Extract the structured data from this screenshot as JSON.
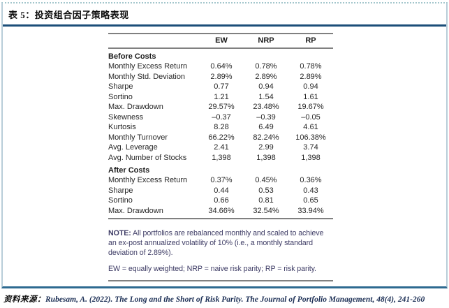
{
  "page": {
    "title": "表 5：投资组合因子策略表现",
    "source_label": "资料来源：",
    "source_text": "Rubesam, A. (2022). The Long and the Short of Risk Parity. The Journal of Portfolio Management, 48(4), 241-260"
  },
  "table": {
    "columns": [
      "EW",
      "NRP",
      "RP"
    ],
    "sections": [
      {
        "header": "Before Costs",
        "rows": [
          {
            "label": "Monthly Excess Return",
            "values": [
              "0.64%",
              "0.78%",
              "0.78%"
            ]
          },
          {
            "label": "Monthly Std. Deviation",
            "values": [
              "2.89%",
              "2.89%",
              "2.89%"
            ]
          },
          {
            "label": "Sharpe",
            "values": [
              "0.77",
              "0.94",
              "0.94"
            ]
          },
          {
            "label": "Sortino",
            "values": [
              "1.21",
              "1.54",
              "1.61"
            ]
          },
          {
            "label": "Max. Drawdown",
            "values": [
              "29.57%",
              "23.48%",
              "19.67%"
            ]
          },
          {
            "label": "Skewness",
            "values": [
              "–0.37",
              "–0.39",
              "–0.05"
            ]
          },
          {
            "label": "Kurtosis",
            "values": [
              "8.28",
              "6.49",
              "4.61"
            ]
          },
          {
            "label": "Monthly Turnover",
            "values": [
              "66.22%",
              "82.24%",
              "106.38%"
            ]
          },
          {
            "label": "Avg. Leverage",
            "values": [
              "2.41",
              "2.99",
              "3.74"
            ]
          },
          {
            "label": "Avg. Number of Stocks",
            "values": [
              "1,398",
              "1,398",
              "1,398"
            ]
          }
        ]
      },
      {
        "header": "After Costs",
        "rows": [
          {
            "label": "Monthly Excess Return",
            "values": [
              "0.37%",
              "0.45%",
              "0.36%"
            ]
          },
          {
            "label": "Sharpe",
            "values": [
              "0.44",
              "0.53",
              "0.43"
            ]
          },
          {
            "label": "Sortino",
            "values": [
              "0.66",
              "0.81",
              "0.65"
            ]
          },
          {
            "label": "Max. Drawdown",
            "values": [
              "34.66%",
              "32.54%",
              "33.94%"
            ]
          }
        ]
      }
    ],
    "note_label": "NOTE:",
    "note_body": " All portfolios are rebalanced monthly and scaled to achieve an ex-post annualized volatility of 10% (i.e., a monthly standard deviation of 2.89%).",
    "legend": "EW = equally weighted; NRP = naive risk parity; RP = risk parity."
  },
  "colors": {
    "title_rule": "#1b4e79",
    "box_bottom_rule": "#2d6a90",
    "table_rule": "#808080",
    "note_text": "#3f3d66",
    "source_text": "#1c2f55"
  }
}
